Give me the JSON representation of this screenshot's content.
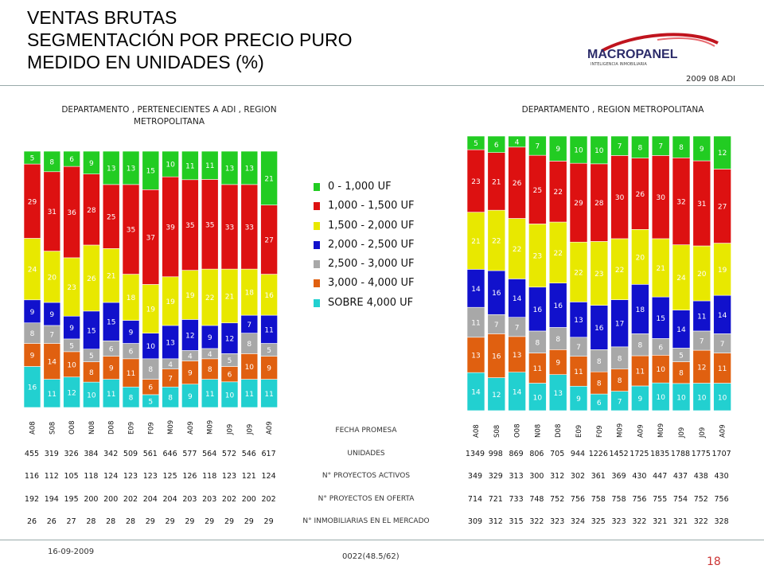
{
  "header": {
    "title_lines": [
      "VENTAS BRUTAS",
      "SEGMENTACIÓN POR PRECIO PURO",
      "MEDIDO EN UNIDADES (%)"
    ],
    "revision": "2009 08 ADI",
    "logo_text": "MACROPANEL",
    "logo_sub": "INTELIGENCIA INMOBILIARIA"
  },
  "legend": {
    "items": [
      {
        "label": "0 - 1,000 UF",
        "color": "#22cc22"
      },
      {
        "label": "1,000 - 1,500 UF",
        "color": "#dd1111"
      },
      {
        "label": "1,500 - 2,000 UF",
        "color": "#e8e800"
      },
      {
        "label": "2,000 - 2,500 UF",
        "color": "#1111cc"
      },
      {
        "label": "2,500 - 3,000 UF",
        "color": "#a8a8a8"
      },
      {
        "label": "3,000 - 4,000 UF",
        "color": "#e06010"
      },
      {
        "label": "SOBRE 4,000 UF",
        "color": "#22d0d0"
      }
    ]
  },
  "chart_data": [
    {
      "type": "bar",
      "stacked": true,
      "title": "DEPARTAMENTO , PERTENECIENTES A ADI , REGION METROPOLITANA",
      "categories": [
        "A08",
        "S08",
        "O08",
        "N08",
        "D08",
        "E09",
        "F09",
        "M09",
        "A09",
        "M09",
        "J09",
        "J09",
        "A09"
      ],
      "series": [
        {
          "name": "SOBRE 4,000 UF",
          "values": [
            16,
            11,
            12,
            10,
            11,
            8,
            5,
            8,
            9,
            11,
            10,
            11,
            11
          ]
        },
        {
          "name": "3,000 - 4,000 UF",
          "values": [
            9,
            14,
            10,
            8,
            9,
            11,
            6,
            7,
            9,
            8,
            6,
            10,
            9
          ]
        },
        {
          "name": "2,500 - 3,000 UF",
          "values": [
            8,
            7,
            5,
            5,
            6,
            6,
            8,
            4,
            4,
            4,
            5,
            8,
            5
          ]
        },
        {
          "name": "2,000 - 2,500 UF",
          "values": [
            9,
            9,
            9,
            15,
            15,
            9,
            10,
            13,
            12,
            9,
            12,
            7,
            11
          ]
        },
        {
          "name": "1,500 - 2,000 UF",
          "values": [
            24,
            20,
            23,
            26,
            21,
            18,
            19,
            19,
            19,
            22,
            21,
            18,
            16
          ]
        },
        {
          "name": "1,000 - 1,500 UF",
          "values": [
            29,
            31,
            36,
            28,
            25,
            35,
            37,
            39,
            35,
            35,
            33,
            33,
            27
          ]
        },
        {
          "name": "0 - 1,000 UF",
          "values": [
            5,
            8,
            6,
            9,
            13,
            13,
            15,
            10,
            11,
            11,
            13,
            13,
            21
          ]
        }
      ],
      "ylim": [
        0,
        100
      ]
    },
    {
      "type": "bar",
      "stacked": true,
      "title": "DEPARTAMENTO , REGION METROPOLITANA",
      "categories": [
        "A08",
        "S08",
        "O08",
        "N08",
        "D08",
        "E09",
        "F09",
        "M09",
        "A09",
        "M09",
        "J09",
        "J09",
        "A09"
      ],
      "series": [
        {
          "name": "SOBRE 4,000 UF",
          "values": [
            14,
            12,
            14,
            10,
            13,
            9,
            6,
            7,
            9,
            10,
            10,
            10,
            10
          ]
        },
        {
          "name": "3,000 - 4,000 UF",
          "values": [
            13,
            16,
            13,
            11,
            9,
            11,
            8,
            8,
            11,
            10,
            8,
            12,
            11
          ]
        },
        {
          "name": "2,500 - 3,000 UF",
          "values": [
            11,
            7,
            7,
            8,
            8,
            7,
            8,
            8,
            8,
            6,
            5,
            7,
            7
          ]
        },
        {
          "name": "2,000 - 2,500 UF",
          "values": [
            14,
            16,
            14,
            16,
            16,
            13,
            16,
            17,
            18,
            15,
            14,
            11,
            14
          ]
        },
        {
          "name": "1,500 - 2,000 UF",
          "values": [
            21,
            22,
            22,
            23,
            22,
            22,
            23,
            22,
            20,
            21,
            24,
            20,
            19
          ]
        },
        {
          "name": "1,000 - 1,500 UF",
          "values": [
            23,
            21,
            26,
            25,
            22,
            29,
            28,
            30,
            26,
            30,
            32,
            31,
            27
          ]
        },
        {
          "name": "0 - 1,000 UF",
          "values": [
            5,
            6,
            4,
            7,
            9,
            10,
            10,
            7,
            8,
            7,
            8,
            9,
            12
          ]
        }
      ],
      "ylim": [
        0,
        100
      ]
    }
  ],
  "table": {
    "rows": [
      {
        "label": "FECHA PROMESA",
        "left": [],
        "right": []
      },
      {
        "label": "UNIDADES",
        "left": [
          "455",
          "319",
          "326",
          "384",
          "342",
          "509",
          "561",
          "646",
          "577",
          "564",
          "572",
          "546",
          "617"
        ],
        "right": [
          "1349",
          "998",
          "869",
          "806",
          "705",
          "944",
          "1226",
          "1452",
          "1725",
          "1835",
          "1788",
          "1775",
          "1707"
        ]
      },
      {
        "label": "N° PROYECTOS ACTIVOS",
        "left": [
          "116",
          "112",
          "105",
          "118",
          "124",
          "123",
          "123",
          "125",
          "126",
          "118",
          "123",
          "121",
          "124"
        ],
        "right": [
          "349",
          "329",
          "313",
          "300",
          "312",
          "302",
          "361",
          "369",
          "430",
          "447",
          "437",
          "438",
          "430"
        ]
      },
      {
        "label": "N° PROYECTOS EN OFERTA",
        "left": [
          "192",
          "194",
          "195",
          "200",
          "200",
          "202",
          "204",
          "204",
          "203",
          "203",
          "202",
          "200",
          "202"
        ],
        "right": [
          "714",
          "721",
          "733",
          "748",
          "752",
          "756",
          "758",
          "758",
          "756",
          "755",
          "754",
          "752",
          "756"
        ]
      },
      {
        "label": "N° INMOBILIARIAS EN EL MERCADO",
        "left": [
          "26",
          "26",
          "27",
          "28",
          "28",
          "28",
          "29",
          "29",
          "29",
          "29",
          "29",
          "29",
          "29"
        ],
        "right": [
          "309",
          "312",
          "315",
          "322",
          "323",
          "324",
          "325",
          "323",
          "322",
          "321",
          "321",
          "322",
          "328"
        ]
      }
    ]
  },
  "footer": {
    "date": "16-09-2009",
    "code": "0022(48.5/62)",
    "page": "18"
  }
}
